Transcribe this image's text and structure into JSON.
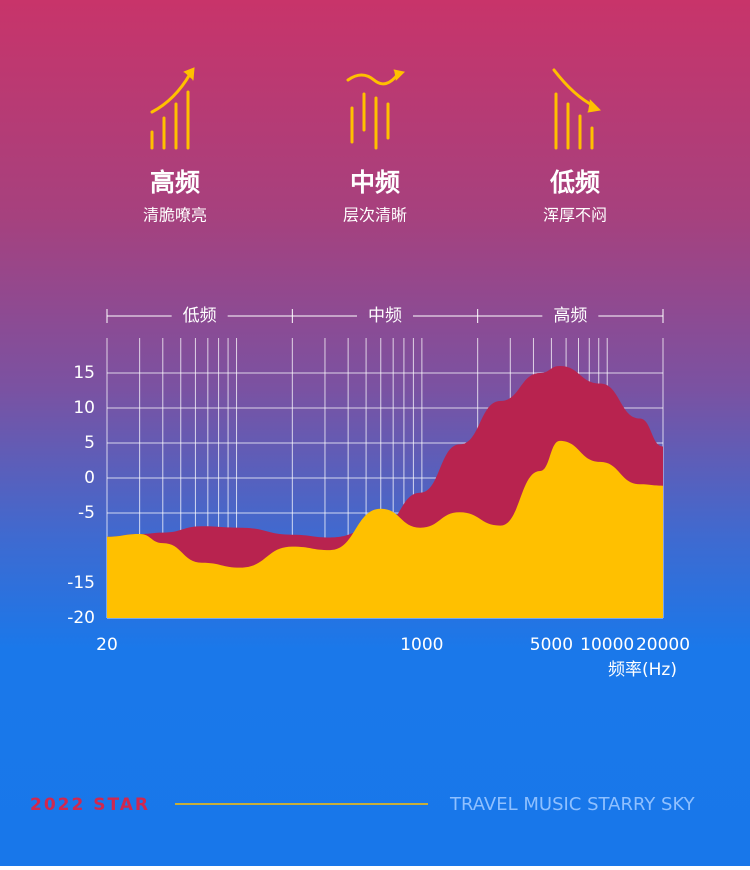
{
  "features": [
    {
      "title": "高频",
      "subtitle": "清脆嘹亮"
    },
    {
      "title": "中频",
      "subtitle": "层次清晰"
    },
    {
      "title": "低频",
      "subtitle": "浑厚不闷"
    }
  ],
  "chart_data": {
    "type": "area",
    "bands": [
      "低频",
      "中频",
      "高频"
    ],
    "x_label": "频率(Hz)",
    "x": [
      20,
      30,
      40,
      65,
      105,
      200,
      320,
      600,
      980,
      1600,
      2650,
      4350,
      5550,
      9150,
      15000,
      20000
    ],
    "series": [
      {
        "color": "#b8234f",
        "values": [
          -8.4,
          -8,
          -7.8,
          -6.9,
          -7.1,
          -8.1,
          -8.5,
          -6.9,
          -2.1,
          4.8,
          11,
          15,
          16,
          13.5,
          8.5,
          4.5
        ]
      },
      {
        "color": "#ffc000",
        "values": [
          -8.4,
          -8,
          -9.3,
          -12.1,
          -12.8,
          -9.8,
          -10.3,
          -4.4,
          -7.1,
          -4.9,
          -6.8,
          1,
          5.3,
          2.3,
          -0.9,
          -1.1
        ]
      }
    ],
    "xlim": [
      20,
      20000
    ],
    "x_log": true,
    "xticks": [
      20,
      1000,
      5000,
      10000,
      20000
    ],
    "xgrid": [
      20,
      30,
      40,
      50,
      60,
      70,
      80,
      90,
      100,
      200,
      300,
      400,
      500,
      600,
      700,
      800,
      900,
      1000,
      2000,
      3000,
      4000,
      5000,
      6000,
      7000,
      8000,
      9000,
      10000,
      20000
    ],
    "ylim": [
      -20,
      20
    ],
    "yticks": [
      -20,
      -15,
      -5,
      0,
      5,
      10,
      15
    ],
    "grid": true
  },
  "footer": {
    "left": "2022 STAR",
    "right": "TRAVEL MUSIC STARRY SKY"
  }
}
